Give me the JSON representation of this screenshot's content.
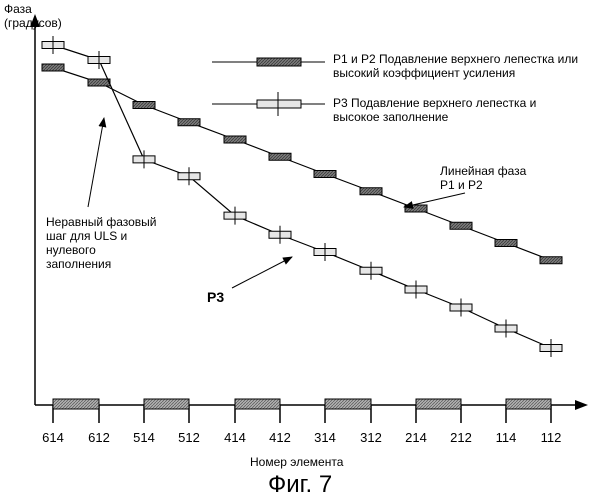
{
  "figure": {
    "caption": "Фиг. 7",
    "ylabel_lines": [
      "Фаза",
      "(градусов)"
    ],
    "xlabel": "Номер элемента"
  },
  "legend": {
    "p1p2_lines": [
      "P1 и P2 Подавление верхнего лепестка или",
      "высокий коэффициент усиления"
    ],
    "p3_lines": [
      "P3 Подавление верхнего лепестка и",
      "высокое заполнение"
    ]
  },
  "annotations": {
    "linear_phase_lines": [
      "Линейная фаза",
      "P1 и P2"
    ],
    "nonuniform_lines": [
      "Неравный фазовый",
      "шаг для ULS и",
      "нулевого",
      "заполнения"
    ],
    "p3_label": "P3"
  },
  "colors": {
    "line": "#000000",
    "p1p2_marker_fill": "#8c8c8c",
    "p3_marker_fill": "#e6e6e6",
    "hatch_fill": "#9a9a9a"
  },
  "chart_data": {
    "type": "line",
    "x_axis": "categorical",
    "categories": [
      "614",
      "612",
      "514",
      "512",
      "414",
      "412",
      "314",
      "312",
      "214",
      "212",
      "114",
      "112"
    ],
    "y_ticks": "none",
    "y_units": "arbitrary phase units (no numeric scale printed)",
    "ylim": [
      0,
      100
    ],
    "series": [
      {
        "name": "P1 и P2 Подавление верхнего лепестка или высокий коэффициент усиления",
        "marker": "filled-rect",
        "values": [
          90,
          86,
          80,
          75.4,
          70.8,
          66.2,
          61.6,
          57,
          52.4,
          47.8,
          43.2,
          38.6
        ]
      },
      {
        "name": "P3 Подавление верхнего лепестка и высокое заполнение",
        "marker": "light-rect-with-tick",
        "values": [
          96,
          92,
          65.5,
          61,
          50.5,
          45.4,
          40.8,
          35.8,
          30.8,
          26,
          20.4,
          15.2
        ]
      }
    ],
    "element_groups": [
      [
        "614",
        "612"
      ],
      [
        "514",
        "512"
      ],
      [
        "414",
        "412"
      ],
      [
        "314",
        "312"
      ],
      [
        "214",
        "212"
      ],
      [
        "114",
        "112"
      ]
    ]
  }
}
